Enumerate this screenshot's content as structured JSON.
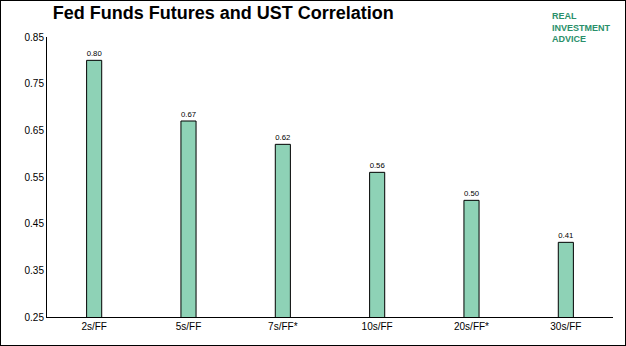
{
  "chart_data": {
    "type": "bar",
    "title": "Fed Funds Futures and UST Correlation",
    "annotations": [
      "REAL INVESTMENT ADVICE"
    ],
    "categories": [
      "2s/FF",
      "5s/FF",
      "7s/FF*",
      "10s/FF",
      "20s/FF*",
      "30s/FF"
    ],
    "values": [
      0.8,
      0.67,
      0.62,
      0.56,
      0.5,
      0.41
    ],
    "value_labels": [
      "0.80",
      "0.67",
      "0.62",
      "0.56",
      "0.50",
      "0.41"
    ],
    "color": "#8ed2b6",
    "ylim": [
      0.25,
      0.85
    ],
    "yticks": [
      0.25,
      0.35,
      0.45,
      0.55,
      0.65,
      0.75,
      0.85
    ],
    "grid": false,
    "data_labels": true
  }
}
